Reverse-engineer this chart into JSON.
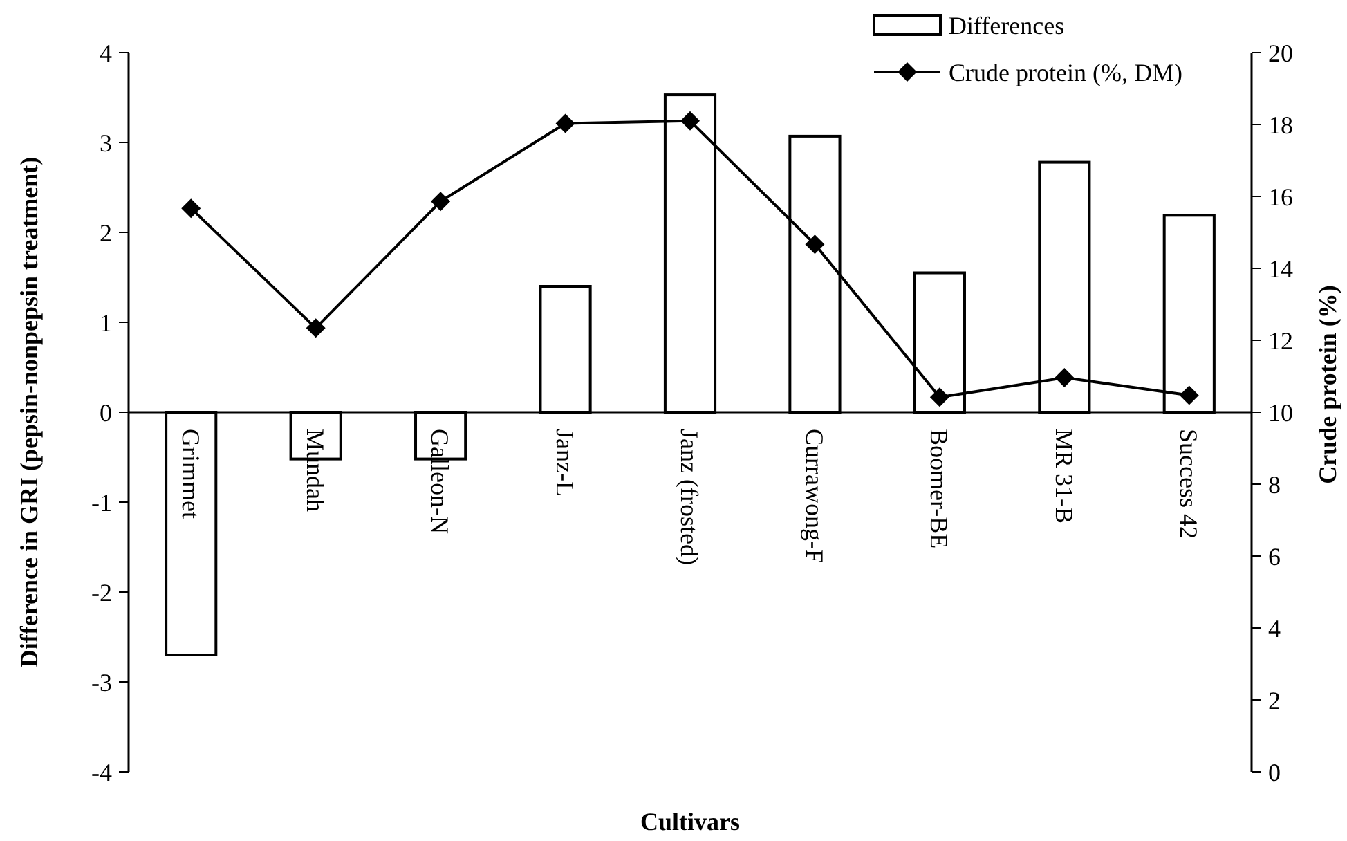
{
  "chart_data": {
    "type": "bar",
    "xlabel": "Cultivars",
    "ylabel": "Difference in GRI (pepsin-nonpepsin treatment)",
    "y2label": "Crude protein (%)",
    "categories": [
      "Grimmet",
      "Mundah",
      "Galleon-N",
      "Janz-L",
      "Janz (frosted)",
      "Currawong-F",
      "Boomer-BE",
      "MR 31-B",
      "Success 42"
    ],
    "series": [
      {
        "name": "Differences",
        "color": "#ffffff",
        "values": [
          -2.7,
          -0.52,
          -0.52,
          1.4,
          3.53,
          3.07,
          1.55,
          2.78,
          2.19
        ]
      },
      {
        "name": "Crude protein (%, DM)",
        "type": "line",
        "axis": "y2",
        "color": "#000000",
        "marker": "diamond",
        "values": [
          15.67,
          12.34,
          15.86,
          18.03,
          18.1,
          14.67,
          10.42,
          10.96,
          10.47
        ]
      }
    ],
    "ylim": [
      -4,
      4
    ],
    "yticks": [
      -4,
      -3,
      -2,
      -1,
      0,
      1,
      2,
      3,
      4
    ],
    "y2lim": [
      0,
      20
    ],
    "y2ticks": [
      0,
      2,
      4,
      6,
      8,
      10,
      12,
      14,
      16,
      18,
      20
    ],
    "legend": "top right",
    "grid": false
  }
}
